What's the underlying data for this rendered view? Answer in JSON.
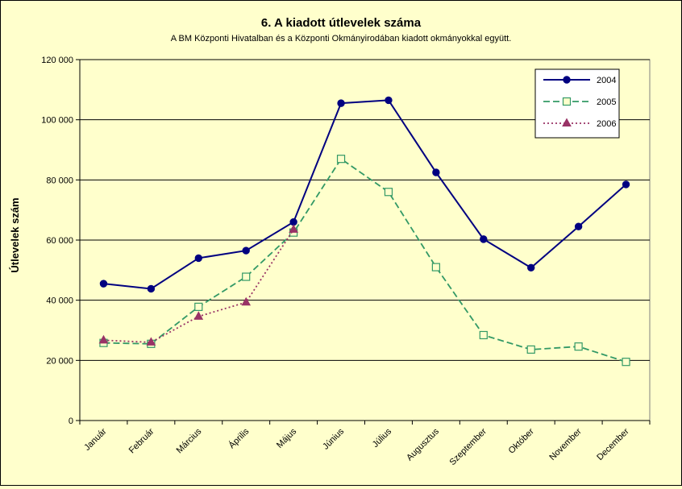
{
  "chart_data": {
    "type": "line",
    "title": "6. A  kiadott útlevelek száma",
    "subtitle": "A BM Központi Hivatalban és a Központi Okmányirodában kiadott okmányokkal együtt.",
    "ylabel": "Útlevelek szám",
    "xlabel": "",
    "ylim": [
      0,
      120000
    ],
    "yticks": [
      0,
      20000,
      40000,
      60000,
      80000,
      100000,
      120000
    ],
    "ytick_labels": [
      "0",
      "20 000",
      "40 000",
      "60 000",
      "80 000",
      "100 000",
      "120 000"
    ],
    "grid": true,
    "legend_position": "top-right",
    "categories": [
      "Január",
      "Február",
      "Március",
      "Április",
      "Május",
      "Június",
      "Július",
      "Augusztus",
      "Szeptember",
      "Október",
      "November",
      "December"
    ],
    "series": [
      {
        "name": "2004",
        "color": "#000080",
        "style": "solid",
        "marker": "diamond",
        "values": [
          45500,
          43800,
          54000,
          56500,
          66000,
          105500,
          106500,
          82500,
          60300,
          50800,
          64500,
          78500
        ]
      },
      {
        "name": "2005",
        "color": "#339966",
        "style": "dashed",
        "marker": "square",
        "values": [
          25800,
          25500,
          37800,
          47800,
          62500,
          87000,
          76000,
          51000,
          28400,
          23600,
          24600,
          19500
        ]
      },
      {
        "name": "2006",
        "color": "#993366",
        "style": "dotted",
        "marker": "triangle",
        "values": [
          26700,
          26000,
          34600,
          39300,
          63500,
          null,
          null,
          null,
          null,
          null,
          null,
          null
        ]
      }
    ]
  }
}
